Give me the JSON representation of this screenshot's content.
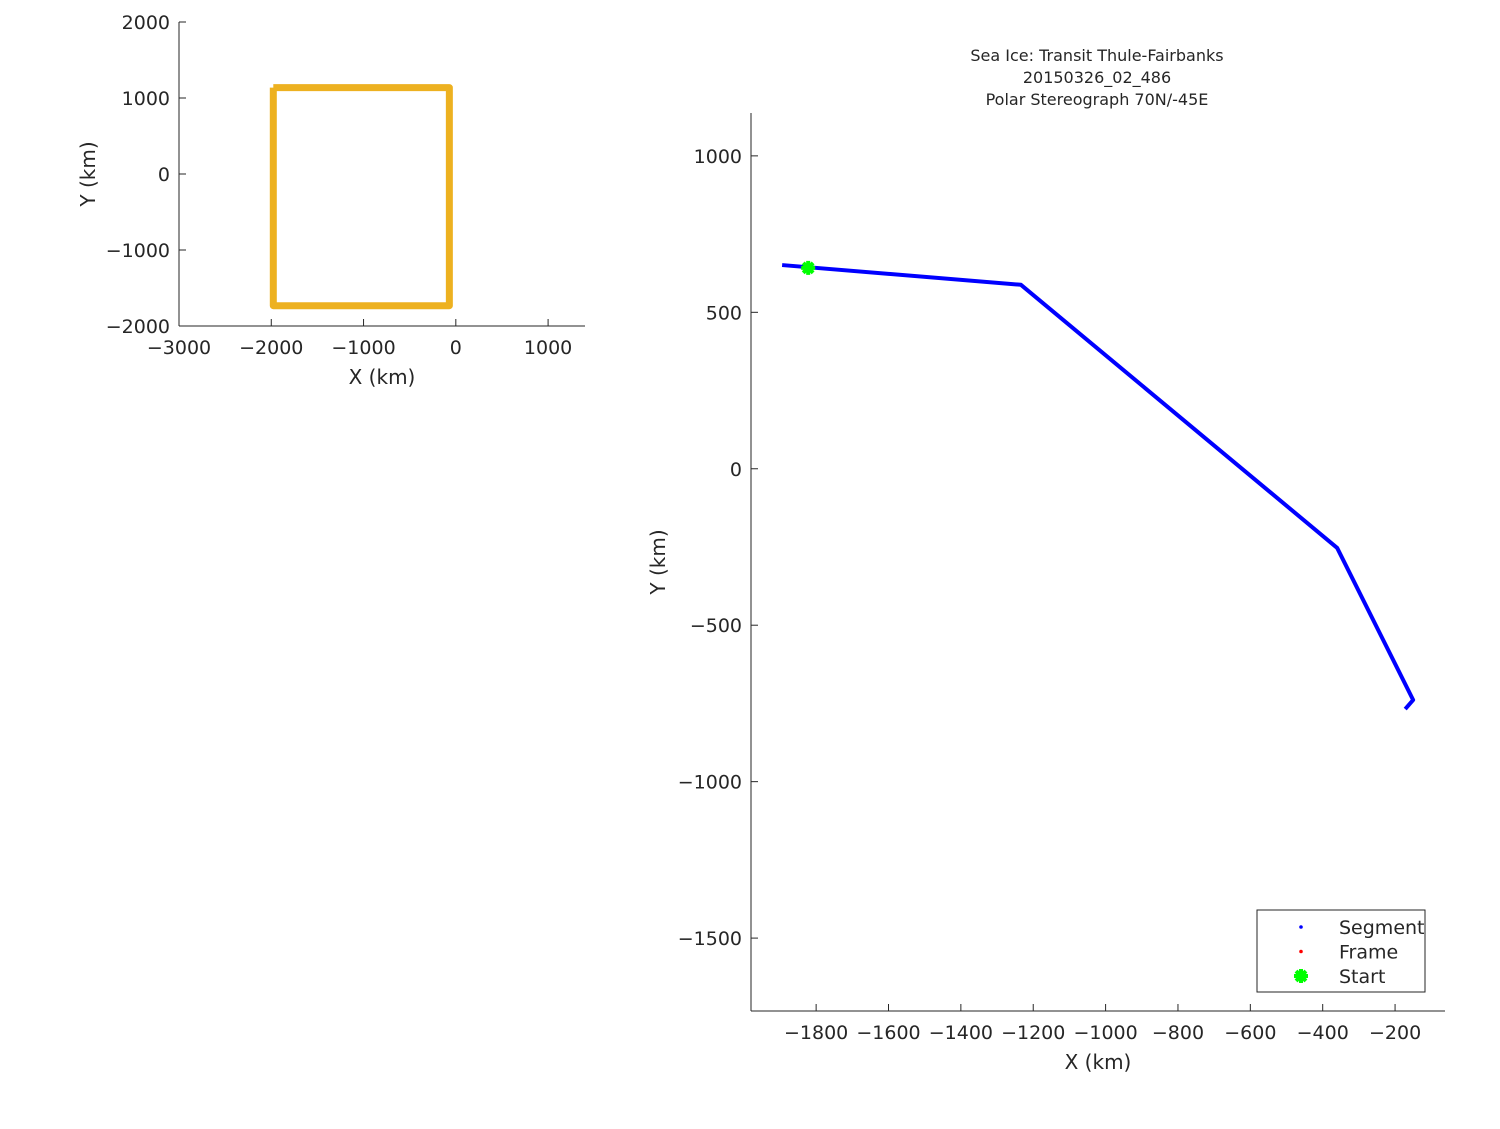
{
  "chart_data": [
    {
      "type": "line",
      "title": "",
      "xlabel": "X (km)",
      "ylabel": "Y (km)",
      "xlim": [
        -3000,
        1400
      ],
      "ylim": [
        -2000,
        2000
      ],
      "xticks": [
        -3000,
        -2000,
        -1000,
        0,
        1000
      ],
      "yticks": [
        -2000,
        -1000,
        0,
        1000,
        2000
      ],
      "grid": false,
      "series": [
        {
          "color": "#EDB120",
          "x": [
            -1978,
            -70,
            -70,
            -1978,
            -1978
          ],
          "y": [
            1137,
            1137,
            -1733,
            -1733,
            1137
          ]
        }
      ]
    },
    {
      "type": "line",
      "title": [
        "Sea Ice: Transit Thule-Fairbanks",
        "20150326_02_486",
        "Polar Stereograph 70N/-45E"
      ],
      "xlabel": "X (km)",
      "ylabel": "Y (km)",
      "xlim": [
        -1980,
        -62
      ],
      "ylim": [
        -1733,
        1137
      ],
      "xticks": [
        -1800,
        -1600,
        -1400,
        -1200,
        -1000,
        -800,
        -600,
        -400,
        -200
      ],
      "yticks": [
        -1500,
        -1000,
        -500,
        0,
        500,
        1000
      ],
      "grid": false,
      "legend_position": "bottom-right",
      "series": [
        {
          "name": "Segment",
          "color": "#0000FF",
          "x": [
            -1894,
            -1234,
            -360,
            -150,
            -172
          ],
          "y": [
            651,
            588,
            -253,
            -739,
            -768
          ]
        },
        {
          "name": "Frame",
          "color": "#FF0000",
          "x": [],
          "y": []
        },
        {
          "name": "Start",
          "color": "#00FF00",
          "x": [
            -1822
          ],
          "y": [
            642
          ]
        }
      ]
    }
  ]
}
